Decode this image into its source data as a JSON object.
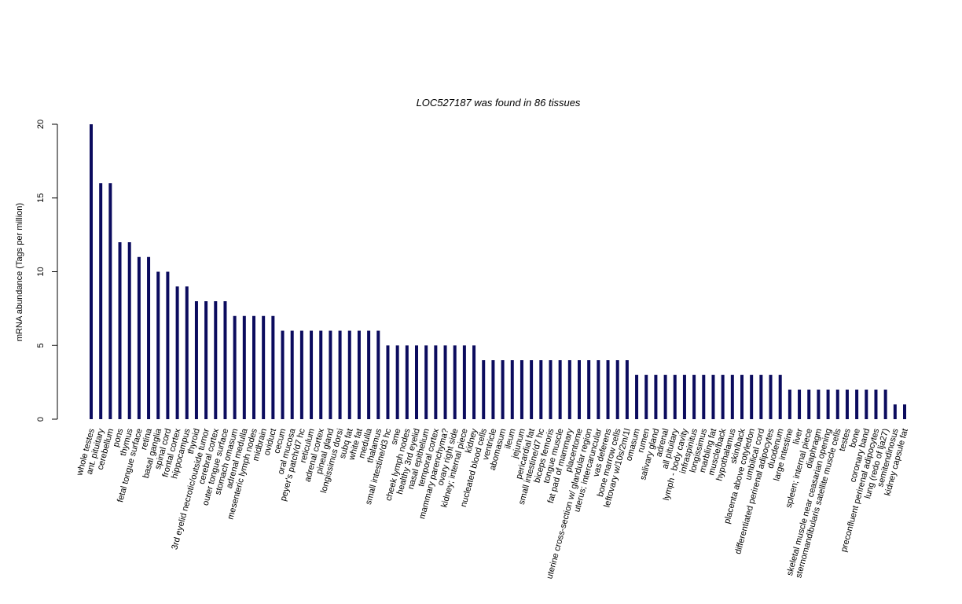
{
  "chart_data": {
    "type": "bar",
    "title": "LOC527187  was found in  86  tissues",
    "y_label": "mRNA abundance (Tags per million)",
    "color": "#0b0b5e",
    "ylim": [
      0,
      20
    ],
    "yticks": [
      0,
      5,
      10,
      15,
      20
    ],
    "categories": [
      "whole testes",
      "ant. pituitary",
      "cerebellum",
      "pons",
      "thymus",
      "fetal tongue surface",
      "retina",
      "basal ganglia",
      "spinal cord",
      "frontal cortex",
      "hippocampus",
      "thyroid",
      "3rd eyelid necrotic/outside tumor",
      "cerebral cortex",
      "outer tongue surface",
      "stomach omasum",
      "adrenal medulla",
      "mesenteric lymph nodes",
      "midbrain",
      "oviduct",
      "cecum",
      "oral mucosa",
      "peyer's patch/d7 hc",
      "reticulum",
      "adrenal cortex",
      "pineal gland",
      "longissimus dorsi",
      "subq fat",
      "white fat",
      "medulla",
      "thalamus",
      "small intestine/d3 hc",
      "sme",
      "cheek lymph nodes",
      "healthy 3rd eyelid",
      "nasal epithelium",
      "temporal cortex",
      "mammary parenchyma?",
      "ovary right side",
      "kidney; internal piece",
      "kidney",
      "nucleated blood cells",
      "ventricle",
      "abomasum",
      "ileum",
      "jejunum",
      "pericardial fat",
      "small intestine/d7 hc",
      "biceps femoris",
      "tongue muscle",
      "fat pad of mammary",
      "placentome",
      "uterine cross-section w/ glandular region",
      "uterus; intercaruncular",
      "vas deferens",
      "bone marrow cells",
      "leftovary w/10s/2m/1l",
      "omasum",
      "rumen",
      "salivary gland",
      "adrenal",
      "all pituitary",
      "lymph - body cavity",
      "infraspinitus",
      "longissimus",
      "marbling fat",
      "muscle/back",
      "hypothalamus",
      "skin/back",
      "placenta above cotyledon",
      "umbilical cord",
      "differentiated perirenal adipocytes",
      "duodenum",
      "large intestine",
      "liver",
      "spleen; internal piece",
      "diaphragm",
      "skeletal muscle near ceasarian opening",
      "sternomandibularis satellite muscle cells",
      "testes",
      "bone",
      "coronary band",
      "preconfluent perirenal adipocytes",
      "lung (redo of lja27)",
      "semitendinosus",
      "kidney capsule fat"
    ],
    "values": [
      20,
      16,
      16,
      12,
      12,
      11,
      11,
      10,
      10,
      9,
      9,
      8,
      8,
      8,
      8,
      7,
      7,
      7,
      7,
      7,
      6,
      6,
      6,
      6,
      6,
      6,
      6,
      6,
      6,
      6,
      6,
      5,
      5,
      5,
      5,
      5,
      5,
      5,
      5,
      5,
      5,
      4,
      4,
      4,
      4,
      4,
      4,
      4,
      4,
      4,
      4,
      4,
      4,
      4,
      4,
      4,
      4,
      3,
      3,
      3,
      3,
      3,
      3,
      3,
      3,
      3,
      3,
      3,
      3,
      3,
      3,
      3,
      3,
      2,
      2,
      2,
      2,
      2,
      2,
      2,
      2,
      2,
      2,
      2,
      1,
      1
    ]
  }
}
